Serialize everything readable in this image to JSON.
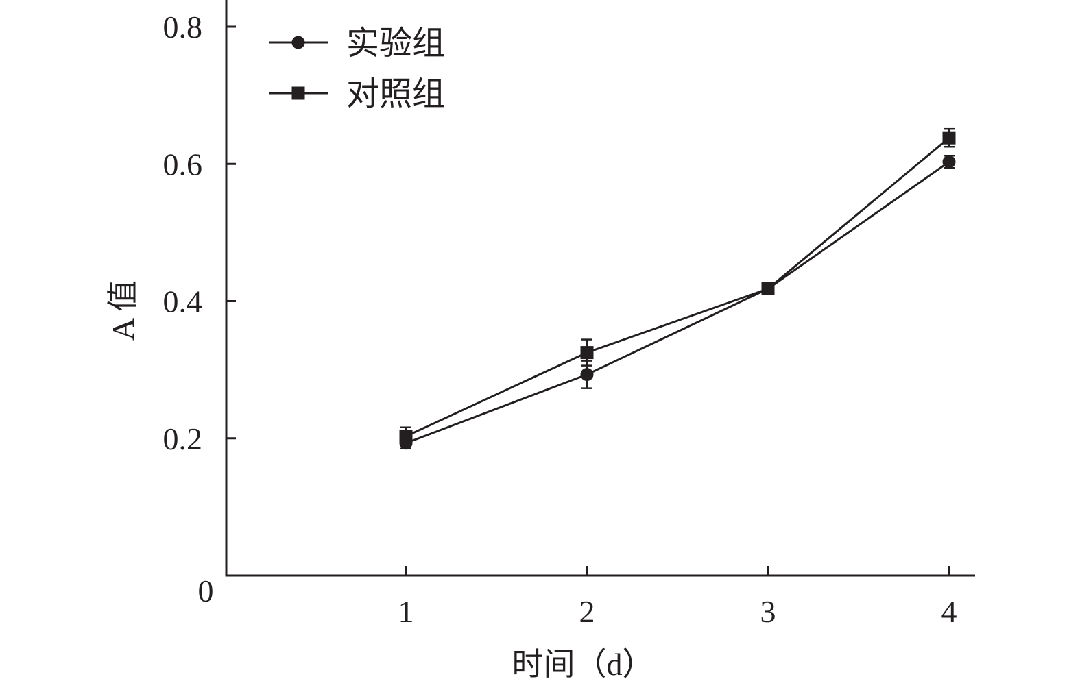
{
  "chart_data": {
    "type": "line",
    "title": "",
    "xlabel": "时间（d）",
    "ylabel": "A 值",
    "x": [
      1,
      2,
      3,
      4
    ],
    "xticks": [
      "1",
      "2",
      "3",
      "4"
    ],
    "xlim": [
      0,
      4.2
    ],
    "ylim": [
      0,
      0.8
    ],
    "yticks": [
      "0",
      "0.2",
      "0.4",
      "0.6",
      "0.8"
    ],
    "grid": false,
    "legend_position": "top-left",
    "series": [
      {
        "name": "实验组",
        "marker": "circle",
        "values": [
          0.193,
          0.293,
          0.418,
          0.603
        ],
        "error": [
          0.008,
          0.02,
          0.004,
          0.009
        ]
      },
      {
        "name": "对照组",
        "marker": "square",
        "values": [
          0.203,
          0.325,
          0.418,
          0.638
        ],
        "error": [
          0.013,
          0.019,
          0.004,
          0.013
        ]
      }
    ],
    "colors": {
      "ink": "#231f20",
      "background": "#ffffff"
    }
  }
}
